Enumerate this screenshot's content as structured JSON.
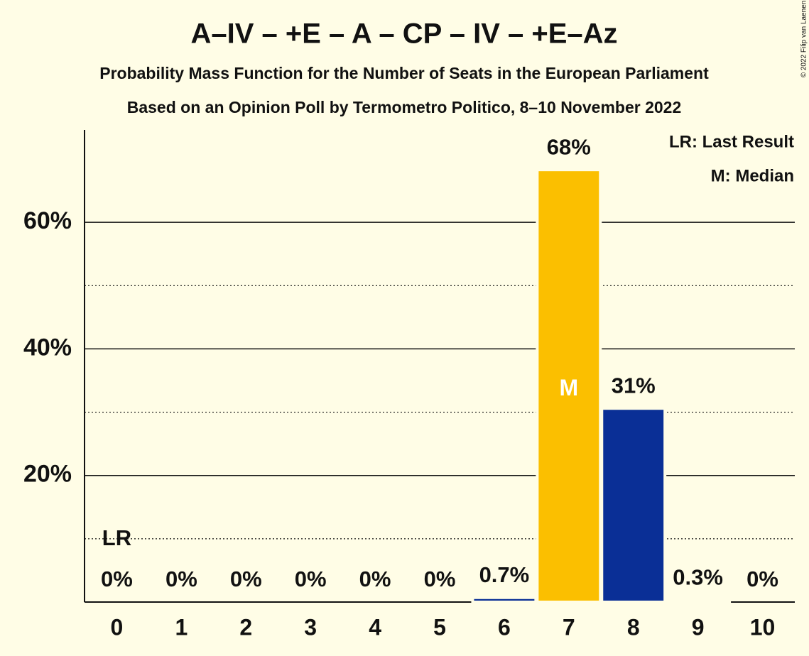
{
  "chart_data": {
    "type": "bar",
    "title": "A–IV – +E – A – CP – IV – +E–Az",
    "subtitle": "Probability Mass Function for the Number of Seats in the European Parliament",
    "subtitle2": "Based on an Opinion Poll by Termometro Politico, 8–10 November 2022",
    "categories": [
      "0",
      "1",
      "2",
      "3",
      "4",
      "5",
      "6",
      "7",
      "8",
      "9",
      "10"
    ],
    "values": [
      0,
      0,
      0,
      0,
      0,
      0,
      0.7,
      68.3,
      30.6,
      0.3,
      0
    ],
    "value_labels": [
      "0%",
      "0%",
      "0%",
      "0%",
      "0%",
      "0%",
      "0.7%",
      "68%",
      "31%",
      "0.3%",
      "0%"
    ],
    "colors": [
      "#0a2f96",
      "#0a2f96",
      "#0a2f96",
      "#0a2f96",
      "#0a2f96",
      "#0a2f96",
      "#0a2f96",
      "#fbbf00",
      "#0a2f96",
      "#8b1a2b",
      "#0a2f96"
    ],
    "ylim": [
      0,
      74.6
    ],
    "yticks": [
      {
        "value": 20,
        "label": "20%"
      },
      {
        "value": 40,
        "label": "40%"
      },
      {
        "value": 60,
        "label": "60%"
      }
    ],
    "minor_yticks": [
      10,
      30,
      50
    ],
    "grid": true,
    "last_result": {
      "label": "LR",
      "category": "0"
    },
    "median": {
      "label": "M",
      "category": "7"
    },
    "legend": [
      "LR: Last Result",
      "M: Median"
    ],
    "copyright": "© 2022 Filip van Laenen"
  }
}
